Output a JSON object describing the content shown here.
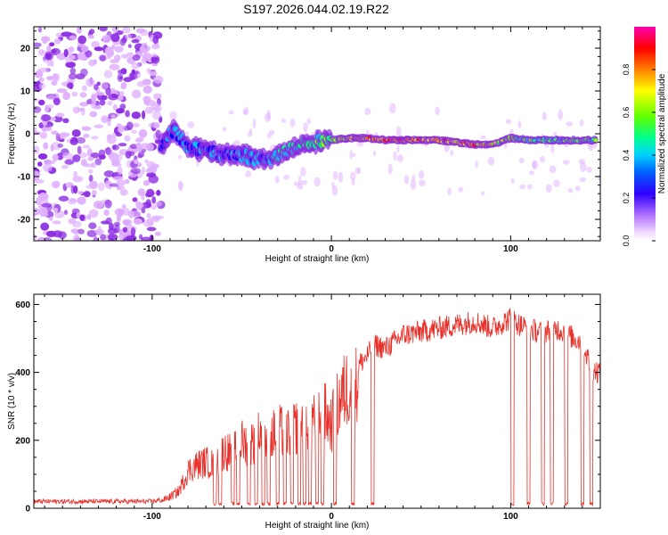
{
  "figure_title": "S197.2026.044.02.19.R22",
  "colors": {
    "snr_line": "#e8302a",
    "frame": "#000000",
    "background": "#ffffff"
  },
  "chart_data": [
    {
      "type": "heatmap",
      "title": "S197.2026.044.02.19.R22",
      "xlabel": "Height of straight line (km)",
      "ylabel": "Frequency (Hz)",
      "xlim": [
        -166,
        150
      ],
      "ylim": [
        -25,
        25
      ],
      "x_ticks": [
        -100,
        0,
        100
      ],
      "y_ticks": [
        -20,
        -10,
        0,
        10,
        20
      ],
      "colorbar": {
        "label": "Normalized spectral amplitude",
        "range": [
          0,
          1
        ],
        "ticks": [
          0,
          0.2,
          0.4,
          0.6,
          0.8
        ],
        "tick_labels": [
          "0.0",
          "0.2",
          "0.4",
          "0.6",
          "0.8"
        ],
        "colormap": [
          "#ffffff",
          "#e0b0ff",
          "#8a2be2",
          "#0000ff",
          "#00c8ff",
          "#00ff7f",
          "#80ff00",
          "#ffff00",
          "#ff8000",
          "#ff0000",
          "#ff00c0"
        ]
      },
      "noise_region_x": [
        -166,
        -95
      ],
      "ridge": [
        {
          "x": -95,
          "f": -3,
          "a": 0.35
        },
        {
          "x": -88,
          "f": 1,
          "a": 0.45
        },
        {
          "x": -80,
          "f": -3,
          "a": 0.4
        },
        {
          "x": -70,
          "f": -4,
          "a": 0.38
        },
        {
          "x": -60,
          "f": -5,
          "a": 0.4
        },
        {
          "x": -50,
          "f": -5,
          "a": 0.42
        },
        {
          "x": -40,
          "f": -6,
          "a": 0.45
        },
        {
          "x": -30,
          "f": -5,
          "a": 0.5
        },
        {
          "x": -20,
          "f": -3,
          "a": 0.55
        },
        {
          "x": -10,
          "f": -2,
          "a": 0.6
        },
        {
          "x": 0,
          "f": -1.5,
          "a": 0.65
        },
        {
          "x": 10,
          "f": -1,
          "a": 0.75
        },
        {
          "x": 20,
          "f": -1,
          "a": 0.85
        },
        {
          "x": 30,
          "f": -1.5,
          "a": 0.95
        },
        {
          "x": 40,
          "f": -1.5,
          "a": 0.95
        },
        {
          "x": 50,
          "f": -1.5,
          "a": 0.95
        },
        {
          "x": 60,
          "f": -1.5,
          "a": 0.9
        },
        {
          "x": 70,
          "f": -2,
          "a": 0.9
        },
        {
          "x": 80,
          "f": -2.5,
          "a": 0.9
        },
        {
          "x": 90,
          "f": -2.5,
          "a": 0.8
        },
        {
          "x": 100,
          "f": -1,
          "a": 0.65
        },
        {
          "x": 110,
          "f": -1.5,
          "a": 0.6
        },
        {
          "x": 120,
          "f": -1.5,
          "a": 0.6
        },
        {
          "x": 130,
          "f": -1.5,
          "a": 0.6
        },
        {
          "x": 140,
          "f": -1.5,
          "a": 0.65
        },
        {
          "x": 148,
          "f": -1.5,
          "a": 0.6
        }
      ]
    },
    {
      "type": "line",
      "xlabel": "Height of straight line (km)",
      "ylabel": "SNR (10 * v/v)",
      "xlim": [
        -166,
        150
      ],
      "ylim": [
        0,
        630
      ],
      "x_ticks": [
        -100,
        0,
        100
      ],
      "y_ticks": [
        0,
        200,
        400,
        600
      ],
      "series": [
        {
          "name": "SNR",
          "x": [
            -166,
            -150,
            -130,
            -110,
            -100,
            -95,
            -90,
            -85,
            -80,
            -75,
            -70,
            -65,
            -60,
            -55,
            -50,
            -45,
            -40,
            -35,
            -30,
            -25,
            -20,
            -15,
            -10,
            -5,
            0,
            5,
            10,
            15,
            20,
            25,
            30,
            40,
            50,
            60,
            70,
            80,
            90,
            100,
            105,
            110,
            115,
            120,
            125,
            130,
            135,
            140,
            145,
            150
          ],
          "y": [
            20,
            20,
            20,
            20,
            20,
            25,
            40,
            60,
            130,
            150,
            160,
            150,
            200,
            190,
            230,
            220,
            260,
            240,
            270,
            260,
            280,
            290,
            320,
            340,
            290,
            380,
            430,
            420,
            450,
            480,
            470,
            510,
            520,
            530,
            540,
            550,
            530,
            560,
            540,
            530,
            520,
            520,
            530,
            520,
            500,
            490,
            410,
            400
          ],
          "dropouts_x": [
            -65,
            -62,
            -55,
            -52,
            -46,
            -42,
            -38,
            -35,
            -30,
            -26,
            -22,
            -18,
            -15,
            -12,
            -8,
            -5,
            2,
            12,
            23,
            101,
            110,
            118,
            123,
            131,
            140,
            145
          ]
        }
      ]
    }
  ]
}
